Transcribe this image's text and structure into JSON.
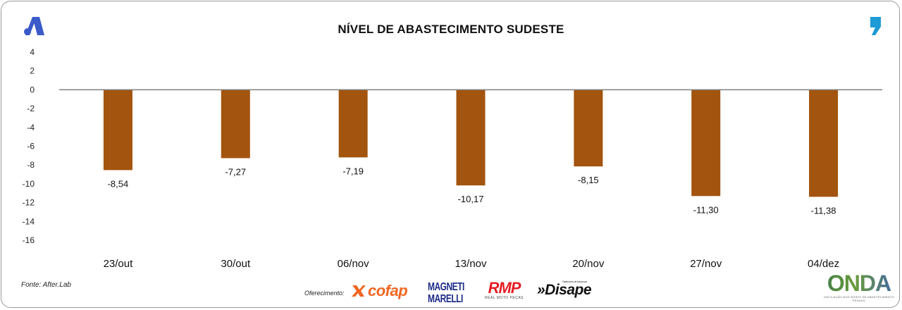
{
  "header": {
    "left_logo_icon": "letter-a-logo-icon",
    "right_logo_icon": "comma-logo-icon"
  },
  "chart_data": {
    "type": "bar",
    "title": "NÍVEL DE ABASTECIMENTO SUDESTE",
    "categories": [
      "23/out",
      "30/out",
      "06/nov",
      "13/nov",
      "20/nov",
      "27/nov",
      "04/dez"
    ],
    "values": [
      -8.54,
      -7.27,
      -7.19,
      -10.17,
      -8.15,
      -11.3,
      -11.38
    ],
    "value_labels": [
      "-8,54",
      "-7,27",
      "-7,19",
      "-10,17",
      "-8,15",
      "-11,30",
      "-11,38"
    ],
    "y_ticks": [
      4,
      2,
      0,
      -2,
      -4,
      -6,
      -8,
      -10,
      -12,
      -14,
      -16
    ],
    "ylim": [
      -16,
      4
    ],
    "xlabel": "",
    "ylabel": "",
    "grid": false,
    "legend": "none",
    "bar_color": "#a3540e",
    "zero_line_color": "#7f7f7f"
  },
  "footer": {
    "source": "Fonte: After.Lab",
    "sponsor_label": "Oferecimento:",
    "sponsors": {
      "cofap": "cofap",
      "magneti_line1": "MAGNETI",
      "magneti_line2": "MARELLI",
      "rmp": "RMP",
      "rmp_sub": "REAL MOTO PEÇAS",
      "disape": "»Disape",
      "disape_tag": "Distribuidora de Autopeças",
      "onda": "ONDA",
      "onda_sub": "OSCILAÇÃO NOS NÍVEIS DE ABASTECIMENTO PESADO"
    }
  }
}
